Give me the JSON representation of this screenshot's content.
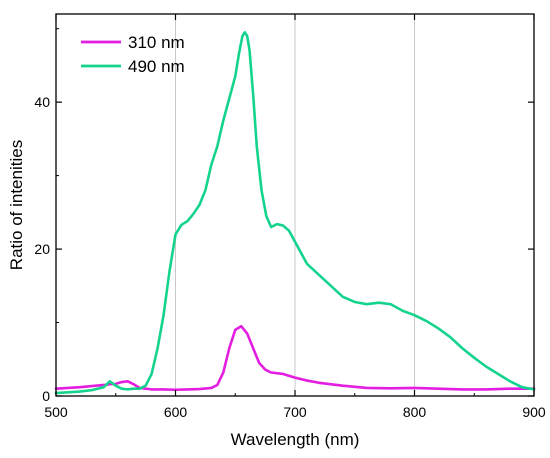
{
  "chart_data": {
    "type": "line",
    "xlabel": "Wavelength (nm)",
    "ylabel": "Ratio of intenities",
    "xlim": [
      500,
      900
    ],
    "ylim": [
      0,
      52
    ],
    "xticks": [
      500,
      600,
      700,
      800,
      900
    ],
    "yticks": [
      0,
      20,
      40
    ],
    "xticks_minor": [
      550,
      650,
      750,
      850
    ],
    "yticks_minor": [
      10,
      30,
      50
    ],
    "grid": "vertical-major",
    "legend_position": "top-left",
    "series": [
      {
        "name": "310 nm",
        "color": "#e31ee0",
        "x": [
          500,
          510,
          520,
          530,
          540,
          545,
          550,
          555,
          560,
          565,
          570,
          580,
          590,
          600,
          610,
          620,
          630,
          635,
          640,
          645,
          650,
          655,
          660,
          665,
          670,
          675,
          680,
          690,
          700,
          710,
          720,
          740,
          760,
          780,
          800,
          820,
          840,
          860,
          880,
          900
        ],
        "y": [
          1.0,
          1.1,
          1.2,
          1.35,
          1.5,
          1.6,
          1.65,
          1.9,
          2.0,
          1.6,
          1.1,
          0.9,
          0.9,
          0.85,
          0.9,
          0.95,
          1.1,
          1.5,
          3.2,
          6.5,
          9.0,
          9.5,
          8.5,
          6.5,
          4.5,
          3.6,
          3.2,
          3.0,
          2.5,
          2.1,
          1.8,
          1.4,
          1.1,
          1.05,
          1.1,
          1.0,
          0.9,
          0.9,
          1.0,
          1.0
        ]
      },
      {
        "name": "490 nm",
        "color": "#14d48d",
        "x": [
          500,
          510,
          520,
          530,
          540,
          545,
          550,
          555,
          560,
          565,
          570,
          575,
          580,
          585,
          590,
          595,
          598,
          600,
          605,
          610,
          615,
          620,
          625,
          630,
          635,
          640,
          645,
          650,
          653,
          656,
          658,
          660,
          662,
          665,
          668,
          672,
          676,
          680,
          685,
          690,
          695,
          700,
          705,
          710,
          720,
          730,
          740,
          750,
          760,
          770,
          780,
          790,
          800,
          810,
          820,
          830,
          840,
          850,
          860,
          870,
          880,
          890,
          900
        ],
        "y": [
          0.4,
          0.5,
          0.6,
          0.8,
          1.2,
          2.0,
          1.4,
          1.0,
          0.9,
          1.0,
          1.0,
          1.4,
          3.0,
          6.5,
          11.0,
          17.0,
          20.0,
          22.0,
          23.3,
          23.8,
          24.8,
          26.0,
          28.0,
          31.5,
          34.0,
          37.5,
          40.5,
          43.5,
          46.5,
          49.0,
          49.5,
          49.0,
          47.0,
          41.0,
          34.0,
          28.0,
          24.5,
          23.0,
          23.4,
          23.2,
          22.5,
          21.0,
          19.5,
          18.0,
          16.5,
          15.0,
          13.5,
          12.8,
          12.5,
          12.7,
          12.5,
          11.6,
          11.0,
          10.2,
          9.2,
          8.0,
          6.5,
          5.2,
          4.0,
          3.0,
          2.0,
          1.2,
          0.9
        ]
      }
    ]
  }
}
